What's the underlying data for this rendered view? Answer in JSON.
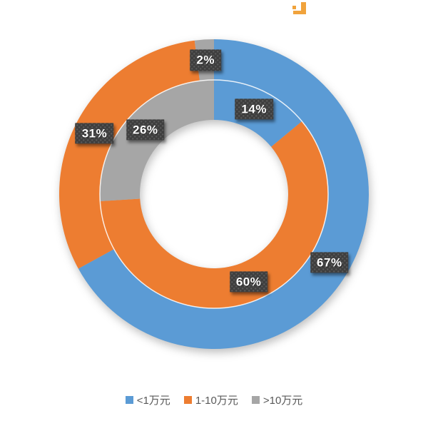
{
  "page": {
    "background": "#ffffff"
  },
  "brand_logo": {
    "color": "#F1A33C"
  },
  "chart_data": {
    "type": "doughnut",
    "title": "",
    "start_angle_deg": 0,
    "direction": "clockwise",
    "categories": [
      "<1万元",
      "1-10万元",
      ">10万元"
    ],
    "colors": [
      "#5B9BD5",
      "#ED7D31",
      "#A6A6A6"
    ],
    "rings": [
      {
        "position": "outer",
        "values": [
          67,
          31,
          2
        ],
        "data_labels": [
          "67%",
          "31%",
          "2%"
        ]
      },
      {
        "position": "inner",
        "values": [
          14,
          60,
          26
        ],
        "data_labels": [
          "14%",
          "60%",
          "26%"
        ]
      }
    ],
    "legend": {
      "position": "bottom"
    },
    "data_label_style": {
      "background": "#3E3E3E",
      "text_color": "#FFFFFF"
    },
    "ring_separator_color": "#FFFFFF"
  }
}
